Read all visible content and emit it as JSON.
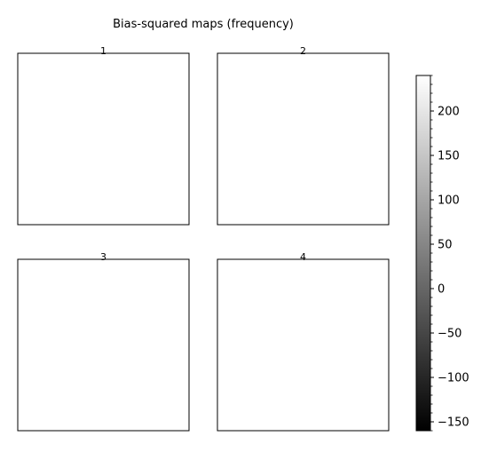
{
  "chart_data": {
    "type": "heatmap",
    "title": "Bias-squared maps (frequency)",
    "panels": [
      {
        "label": "1"
      },
      {
        "label": "2"
      },
      {
        "label": "3"
      },
      {
        "label": "4"
      }
    ],
    "colorbar": {
      "colormap": "gray",
      "range": [
        -160,
        240
      ],
      "ticks": [
        200,
        150,
        100,
        50,
        0,
        -50,
        -100,
        -150
      ],
      "tick_labels": [
        "200",
        "150",
        "100",
        "50",
        "0",
        "−50",
        "−100",
        "−150"
      ]
    }
  }
}
